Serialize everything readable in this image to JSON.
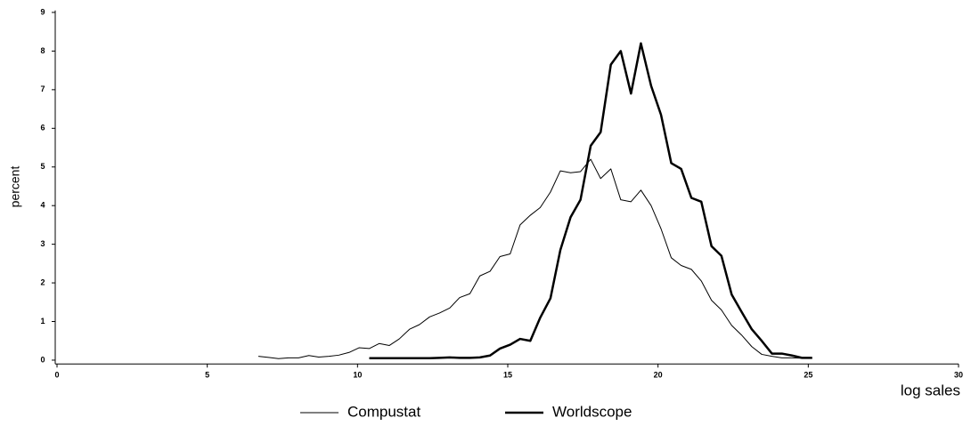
{
  "chart_data": {
    "type": "line",
    "x_label": "log sales",
    "y_label": "percent",
    "x": [
      6.7,
      7.04,
      7.37,
      7.71,
      8.04,
      8.38,
      8.71,
      9.05,
      9.38,
      9.72,
      10.05,
      10.39,
      10.72,
      11.06,
      11.39,
      11.73,
      12.06,
      12.4,
      12.73,
      13.07,
      13.4,
      13.74,
      14.07,
      14.41,
      14.74,
      15.08,
      15.41,
      15.75,
      16.08,
      16.42,
      16.75,
      17.09,
      17.42,
      17.76,
      18.09,
      18.43,
      18.76,
      19.1,
      19.43,
      19.77,
      20.1,
      20.44,
      20.77,
      21.11,
      21.44,
      21.78,
      22.11,
      22.45,
      22.78,
      23.12,
      23.45,
      23.79,
      24.12,
      24.46,
      24.79,
      25.13
    ],
    "series": [
      {
        "name": "Compustat",
        "color": "#000000",
        "line_width": 1,
        "values": [
          0.1,
          0.07,
          0.04,
          0.06,
          0.06,
          0.12,
          0.08,
          0.1,
          0.13,
          0.2,
          0.32,
          0.3,
          0.43,
          0.38,
          0.55,
          0.8,
          0.92,
          1.12,
          1.22,
          1.35,
          1.62,
          1.72,
          2.18,
          2.3,
          2.68,
          2.75,
          3.5,
          3.75,
          3.95,
          4.35,
          4.9,
          4.85,
          4.88,
          5.2,
          4.7,
          4.95,
          4.15,
          4.1,
          4.4,
          4.0,
          3.4,
          2.65,
          2.45,
          2.35,
          2.05,
          1.55,
          1.3,
          0.9,
          0.65,
          0.35,
          0.15,
          0.1,
          0.06,
          0.06,
          0.05,
          0.05
        ]
      },
      {
        "name": "Worldscope",
        "color": "#000000",
        "line_width": 2.5,
        "values": [
          null,
          null,
          null,
          null,
          null,
          null,
          null,
          null,
          null,
          null,
          null,
          0.05,
          0.05,
          0.05,
          0.05,
          0.05,
          0.05,
          0.05,
          0.06,
          0.07,
          0.06,
          0.06,
          0.07,
          0.12,
          0.3,
          0.4,
          0.55,
          0.5,
          1.1,
          1.6,
          2.85,
          3.7,
          4.15,
          5.55,
          5.9,
          7.65,
          8.0,
          6.9,
          8.2,
          7.1,
          6.35,
          5.1,
          4.95,
          4.2,
          4.1,
          2.95,
          2.7,
          1.7,
          1.25,
          0.8,
          0.5,
          0.17,
          0.17,
          0.12,
          0.06,
          0.06
        ]
      }
    ],
    "xlim": [
      0,
      30
    ],
    "xticks": [
      0,
      5,
      10,
      15,
      20,
      25,
      30
    ],
    "ylim": [
      -0.1,
      9.05
    ],
    "yticks": [
      0,
      1,
      2,
      3,
      4,
      5,
      6,
      7,
      8,
      9
    ],
    "grid": false,
    "legend": "bottom"
  }
}
